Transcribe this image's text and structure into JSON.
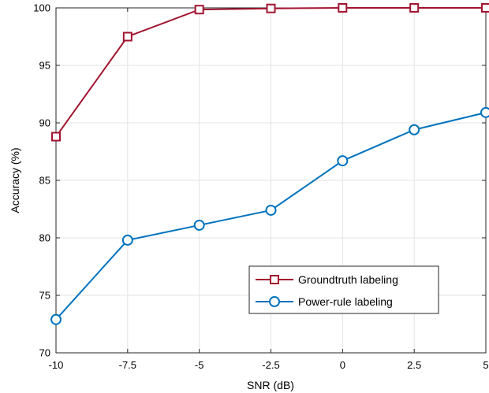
{
  "chart_data": {
    "type": "line",
    "xlabel": "SNR (dB)",
    "ylabel": "Accuracy (%)",
    "xlim": [
      -10,
      5
    ],
    "ylim": [
      70,
      100
    ],
    "xticks": [
      -10,
      -7.5,
      -5,
      -2.5,
      0,
      2.5,
      5
    ],
    "xtick_labels": [
      "-10",
      "-7.5",
      "-5",
      "-2.5",
      "0",
      "2.5",
      "5"
    ],
    "yticks": [
      70,
      75,
      80,
      85,
      90,
      95,
      100
    ],
    "ytick_labels": [
      "70",
      "75",
      "80",
      "85",
      "90",
      "95",
      "100"
    ],
    "grid": true,
    "legend_position": "lower-right",
    "x": [
      -10,
      -7.5,
      -5,
      -2.5,
      0,
      2.5,
      5
    ],
    "series": [
      {
        "name": "Groundtruth labeling",
        "values": [
          88.8,
          97.5,
          99.85,
          99.95,
          100,
          100,
          100
        ],
        "color": "#A2142F",
        "marker": "square"
      },
      {
        "name": "Power-rule labeling",
        "values": [
          72.9,
          79.8,
          81.1,
          82.4,
          86.7,
          89.4,
          90.9
        ],
        "color": "#0072BD",
        "marker": "circle"
      }
    ]
  }
}
